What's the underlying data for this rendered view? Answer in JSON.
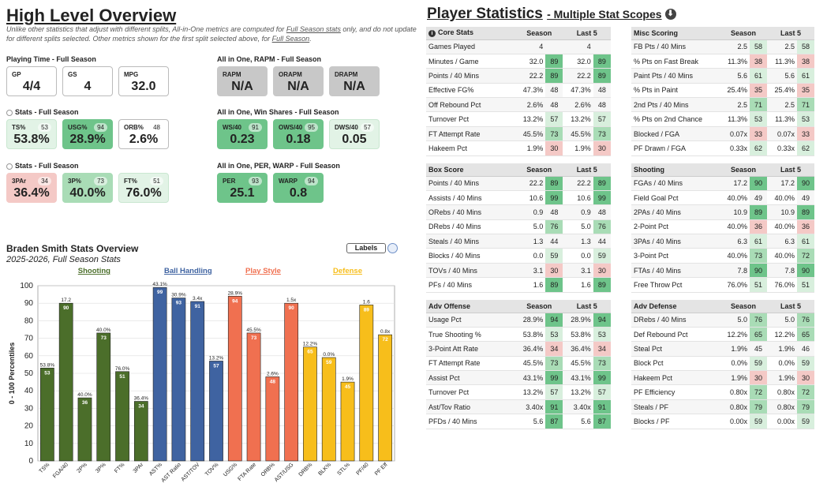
{
  "overview": {
    "title": "High Level Overview",
    "note_parts": [
      "Unlike other statistics that adjust with different splits, All-in-One metrics are computed for ",
      "Full Season stats",
      " only, and do not update for different splits selected. Other metrics shown for the first split selected above, for ",
      "Full Season",
      "."
    ],
    "playing_time": {
      "heading": "Playing Time - Full Season",
      "cards": [
        {
          "label": "GP",
          "value": "4/4",
          "pct": ""
        },
        {
          "label": "GS",
          "value": "4",
          "pct": ""
        },
        {
          "label": "MPG",
          "value": "32.0",
          "pct": ""
        }
      ]
    },
    "stats1": {
      "heading": "Stats - Full Season",
      "cards": [
        {
          "label": "TS%",
          "value": "53.8%",
          "pct": "53"
        },
        {
          "label": "USG%",
          "value": "28.9%",
          "pct": "94"
        },
        {
          "label": "ORB%",
          "value": "2.6%",
          "pct": "48"
        }
      ]
    },
    "stats2": {
      "heading": "Stats - Full Season",
      "cards": [
        {
          "label": "3PAr",
          "value": "36.4%",
          "pct": "34"
        },
        {
          "label": "3P%",
          "value": "40.0%",
          "pct": "73"
        },
        {
          "label": "FT%",
          "value": "76.0%",
          "pct": "51"
        }
      ]
    },
    "rapm": {
      "heading": "All in One, RAPM - Full Season",
      "cards": [
        {
          "label": "RAPM",
          "value": "N/A",
          "pct": ""
        },
        {
          "label": "ORAPM",
          "value": "N/A",
          "pct": ""
        },
        {
          "label": "DRAPM",
          "value": "N/A",
          "pct": ""
        }
      ]
    },
    "ws": {
      "heading": "All in One, Win Shares - Full Season",
      "cards": [
        {
          "label": "WS/40",
          "value": "0.23",
          "pct": "91"
        },
        {
          "label": "OWS/40",
          "value": "0.18",
          "pct": "95"
        },
        {
          "label": "DWS/40",
          "value": "0.05",
          "pct": "57"
        }
      ]
    },
    "per": {
      "heading": "All in One, PER, WARP - Full Season",
      "cards": [
        {
          "label": "PER",
          "value": "25.1",
          "pct": "93"
        },
        {
          "label": "WARP",
          "value": "0.8",
          "pct": "94"
        }
      ]
    }
  },
  "chart_section": {
    "title": "Braden Smith Stats Overview",
    "subtitle": "2025-2026, Full Season Stats",
    "labels_button": "Labels"
  },
  "chart_data": {
    "type": "bar",
    "ylabel": "0 - 100 Percentiles",
    "ylim": [
      0,
      100
    ],
    "yticks": [
      0,
      10,
      20,
      30,
      40,
      50,
      60,
      70,
      80,
      90,
      100
    ],
    "groups": [
      {
        "name": "Shooting",
        "color": "#4b6e2a",
        "label_color": "#4b6e2a"
      },
      {
        "name": "Ball Handling",
        "color": "#3f63a1",
        "label_color": "#3f63a1"
      },
      {
        "name": "Play Style",
        "color": "#f07050",
        "label_color": "#f07050"
      },
      {
        "name": "Defense",
        "color": "#f7be1b",
        "label_color": "#f7be1b"
      }
    ],
    "bars": [
      {
        "category": "TS%",
        "group": 0,
        "value": 53,
        "stat": "53.8%"
      },
      {
        "category": "FGA/40",
        "group": 0,
        "value": 90,
        "stat": "17.2"
      },
      {
        "category": "2P%",
        "group": 0,
        "value": 36,
        "stat": "40.0%"
      },
      {
        "category": "3P%",
        "group": 0,
        "value": 73,
        "stat": "40.0%"
      },
      {
        "category": "FT%",
        "group": 0,
        "value": 51,
        "stat": "76.0%"
      },
      {
        "category": "3PAr",
        "group": 0,
        "value": 34,
        "stat": "36.4%"
      },
      {
        "category": "AST%",
        "group": 1,
        "value": 99,
        "stat": "43.1%"
      },
      {
        "category": "AST Ratio",
        "group": 1,
        "value": 93,
        "stat": "30.9%"
      },
      {
        "category": "AST/TOV",
        "group": 1,
        "value": 91,
        "stat": "3.4x"
      },
      {
        "category": "TOV%",
        "group": 1,
        "value": 57,
        "stat": "13.2%"
      },
      {
        "category": "USG%",
        "group": 2,
        "value": 94,
        "stat": "28.9%"
      },
      {
        "category": "FTA Rate",
        "group": 2,
        "value": 73,
        "stat": "45.5%"
      },
      {
        "category": "ORB%",
        "group": 2,
        "value": 48,
        "stat": "2.6%"
      },
      {
        "category": "AST/USG",
        "group": 2,
        "value": 90,
        "stat": "1.5x"
      },
      {
        "category": "DRB%",
        "group": 3,
        "value": 65,
        "stat": "12.2%"
      },
      {
        "category": "BLK%",
        "group": 3,
        "value": 59,
        "stat": "0.0%"
      },
      {
        "category": "STL%",
        "group": 3,
        "value": 45,
        "stat": "1.9%"
      },
      {
        "category": "PF/40",
        "group": 3,
        "value": 89,
        "stat": "1.6"
      },
      {
        "category": "PF Eff",
        "group": 3,
        "value": 72,
        "stat": "0.8x"
      }
    ]
  },
  "player_stats": {
    "title": "Player Statistics",
    "subtitle": "- Multiple Stat Scopes",
    "col_season": "Season",
    "col_last5": "Last 5",
    "tables": [
      {
        "title": "Core Stats",
        "rows": [
          [
            "Games Played",
            "4",
            "",
            "4",
            ""
          ],
          [
            "Minutes / Game",
            "32.0",
            "89",
            "32.0",
            "89"
          ],
          [
            "Points / 40 Mins",
            "22.2",
            "89",
            "22.2",
            "89"
          ],
          [
            "Effective FG%",
            "47.3%",
            "48",
            "47.3%",
            "48"
          ],
          [
            "Off Rebound Pct",
            "2.6%",
            "48",
            "2.6%",
            "48"
          ],
          [
            "Turnover Pct",
            "13.2%",
            "57",
            "13.2%",
            "57"
          ],
          [
            "FT Attempt Rate",
            "45.5%",
            "73",
            "45.5%",
            "73"
          ],
          [
            "Hakeem Pct",
            "1.9%",
            "30",
            "1.9%",
            "30"
          ]
        ]
      },
      {
        "title": "Misc Scoring",
        "rows": [
          [
            "FB Pts / 40 Mins",
            "2.5",
            "58",
            "2.5",
            "58"
          ],
          [
            "% Pts on Fast Break",
            "11.3%",
            "38",
            "11.3%",
            "38"
          ],
          [
            "Paint Pts / 40 Mins",
            "5.6",
            "61",
            "5.6",
            "61"
          ],
          [
            "% Pts in Paint",
            "25.4%",
            "35",
            "25.4%",
            "35"
          ],
          [
            "2nd Pts / 40 Mins",
            "2.5",
            "71",
            "2.5",
            "71"
          ],
          [
            "% Pts on 2nd Chance",
            "11.3%",
            "53",
            "11.3%",
            "53"
          ],
          [
            "Blocked / FGA",
            "0.07x",
            "33",
            "0.07x",
            "33"
          ],
          [
            "PF Drawn / FGA",
            "0.33x",
            "62",
            "0.33x",
            "62"
          ]
        ]
      },
      {
        "title": "Box Score",
        "rows": [
          [
            "Points / 40 Mins",
            "22.2",
            "89",
            "22.2",
            "89"
          ],
          [
            "Assists / 40 Mins",
            "10.6",
            "99",
            "10.6",
            "99"
          ],
          [
            "ORebs / 40 Mins",
            "0.9",
            "48",
            "0.9",
            "48"
          ],
          [
            "DRebs / 40 Mins",
            "5.0",
            "76",
            "5.0",
            "76"
          ],
          [
            "Steals / 40 Mins",
            "1.3",
            "44",
            "1.3",
            "44"
          ],
          [
            "Blocks / 40 Mins",
            "0.0",
            "59",
            "0.0",
            "59"
          ],
          [
            "TOVs / 40 Mins",
            "3.1",
            "30",
            "3.1",
            "30"
          ],
          [
            "PFs / 40 Mins",
            "1.6",
            "89",
            "1.6",
            "89"
          ]
        ]
      },
      {
        "title": "Shooting",
        "rows": [
          [
            "FGAs / 40 Mins",
            "17.2",
            "90",
            "17.2",
            "90"
          ],
          [
            "Field Goal Pct",
            "40.0%",
            "49",
            "40.0%",
            "49"
          ],
          [
            "2PAs / 40 Mins",
            "10.9",
            "89",
            "10.9",
            "89"
          ],
          [
            "2-Point Pct",
            "40.0%",
            "36",
            "40.0%",
            "36"
          ],
          [
            "3PAs / 40 Mins",
            "6.3",
            "61",
            "6.3",
            "61"
          ],
          [
            "3-Point Pct",
            "40.0%",
            "73",
            "40.0%",
            "72"
          ],
          [
            "FTAs / 40 Mins",
            "7.8",
            "90",
            "7.8",
            "90"
          ],
          [
            "Free Throw Pct",
            "76.0%",
            "51",
            "76.0%",
            "51"
          ]
        ]
      },
      {
        "title": "Adv Offense",
        "rows": [
          [
            "Usage Pct",
            "28.9%",
            "94",
            "28.9%",
            "94"
          ],
          [
            "True Shooting %",
            "53.8%",
            "53",
            "53.8%",
            "53"
          ],
          [
            "3-Point Att Rate",
            "36.4%",
            "34",
            "36.4%",
            "34"
          ],
          [
            "FT Attempt Rate",
            "45.5%",
            "73",
            "45.5%",
            "73"
          ],
          [
            "Assist Pct",
            "43.1%",
            "99",
            "43.1%",
            "99"
          ],
          [
            "Turnover Pct",
            "13.2%",
            "57",
            "13.2%",
            "57"
          ],
          [
            "Ast/Tov Ratio",
            "3.40x",
            "91",
            "3.40x",
            "91"
          ],
          [
            "PFDs / 40 Mins",
            "5.6",
            "87",
            "5.6",
            "87"
          ]
        ]
      },
      {
        "title": "Adv Defense",
        "rows": [
          [
            "DRebs / 40 Mins",
            "5.0",
            "76",
            "5.0",
            "76"
          ],
          [
            "Def Rebound Pct",
            "12.2%",
            "65",
            "12.2%",
            "65"
          ],
          [
            "Steal Pct",
            "1.9%",
            "45",
            "1.9%",
            "46"
          ],
          [
            "Block Pct",
            "0.0%",
            "59",
            "0.0%",
            "59"
          ],
          [
            "Hakeem Pct",
            "1.9%",
            "30",
            "1.9%",
            "30"
          ],
          [
            "PF Efficiency",
            "0.80x",
            "72",
            "0.80x",
            "72"
          ],
          [
            "Steals / PF",
            "0.80x",
            "79",
            "0.80x",
            "79"
          ],
          [
            "Blocks / PF",
            "0.00x",
            "59",
            "0.00x",
            "59"
          ]
        ]
      }
    ]
  }
}
